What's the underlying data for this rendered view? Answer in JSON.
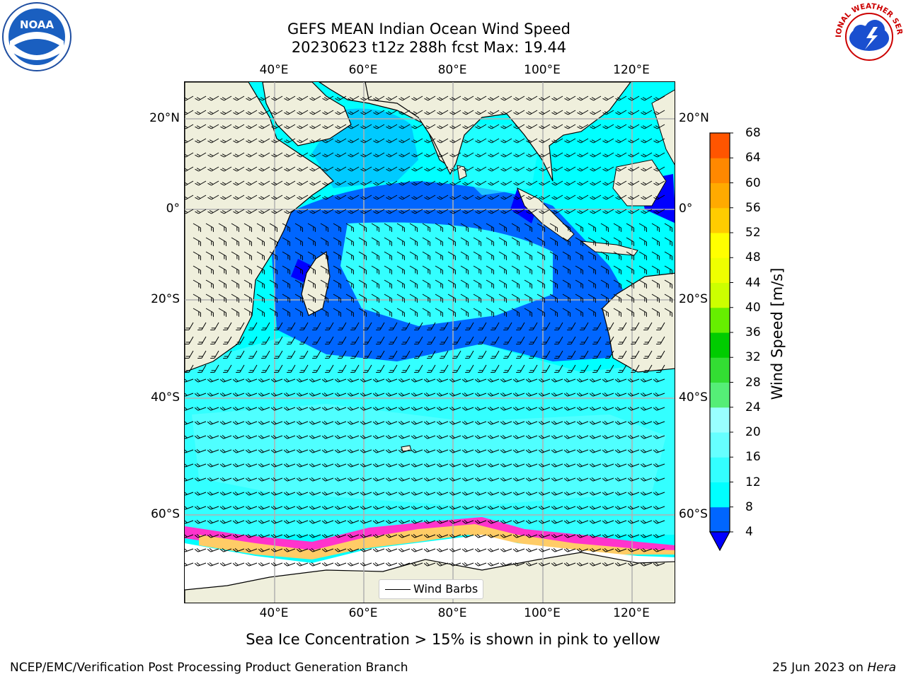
{
  "title": "GEFS MEAN Indian Ocean Wind Speed",
  "subtitle_line": "20230623 t12z 288h fcst   Max: 19.44",
  "logos": {
    "left": {
      "icon": "noaa-logo-icon",
      "text": "NOAA"
    },
    "right": {
      "icon": "nws-logo-icon",
      "text": "NATIONAL WEATHER SERVICE"
    }
  },
  "map": {
    "region": "Indian Ocean",
    "lon_labels": [
      "40°E",
      "60°E",
      "80°E",
      "100°E",
      "120°E"
    ],
    "lat_labels": [
      "20°N",
      "0°",
      "20°S",
      "40°S",
      "60°S"
    ],
    "legend": "Wind Barbs"
  },
  "colorbar": {
    "label": "Wind Speed [m/s]",
    "ticks": [
      "4",
      "8",
      "12",
      "16",
      "20",
      "24",
      "28",
      "32",
      "36",
      "40",
      "44",
      "48",
      "52",
      "56",
      "60",
      "64",
      "68"
    ],
    "colors": [
      "#0066ff",
      "#00ffff",
      "#33ffff",
      "#66ffff",
      "#99ffff",
      "#55ee77",
      "#33dd33",
      "#00cc00",
      "#66ee00",
      "#ccff00",
      "#eeff00",
      "#ffff00",
      "#ffcc00",
      "#ffaa00",
      "#ff8800",
      "#ff5500",
      "#ff2200",
      "#ff0000"
    ],
    "extend_color": "#0000ff"
  },
  "ice_note": "Sea Ice Concentration > 15% is shown in pink to yellow",
  "footer": {
    "left": "NCEP/EMC/Verification Post Processing Product Generation Branch",
    "right_date": "25 Jun 2023 on",
    "right_host": "Hera"
  },
  "colors": {
    "land": "#efefdc",
    "speed_4_8": "#0066ff",
    "speed_8_12": "#00ffff",
    "speed_12_16": "#33ffff",
    "speed_16_20": "#66ffff",
    "speed_lt4": "#0000ff",
    "ice_pink": "#ff33cc",
    "ice_yellow": "#ffcc66"
  }
}
